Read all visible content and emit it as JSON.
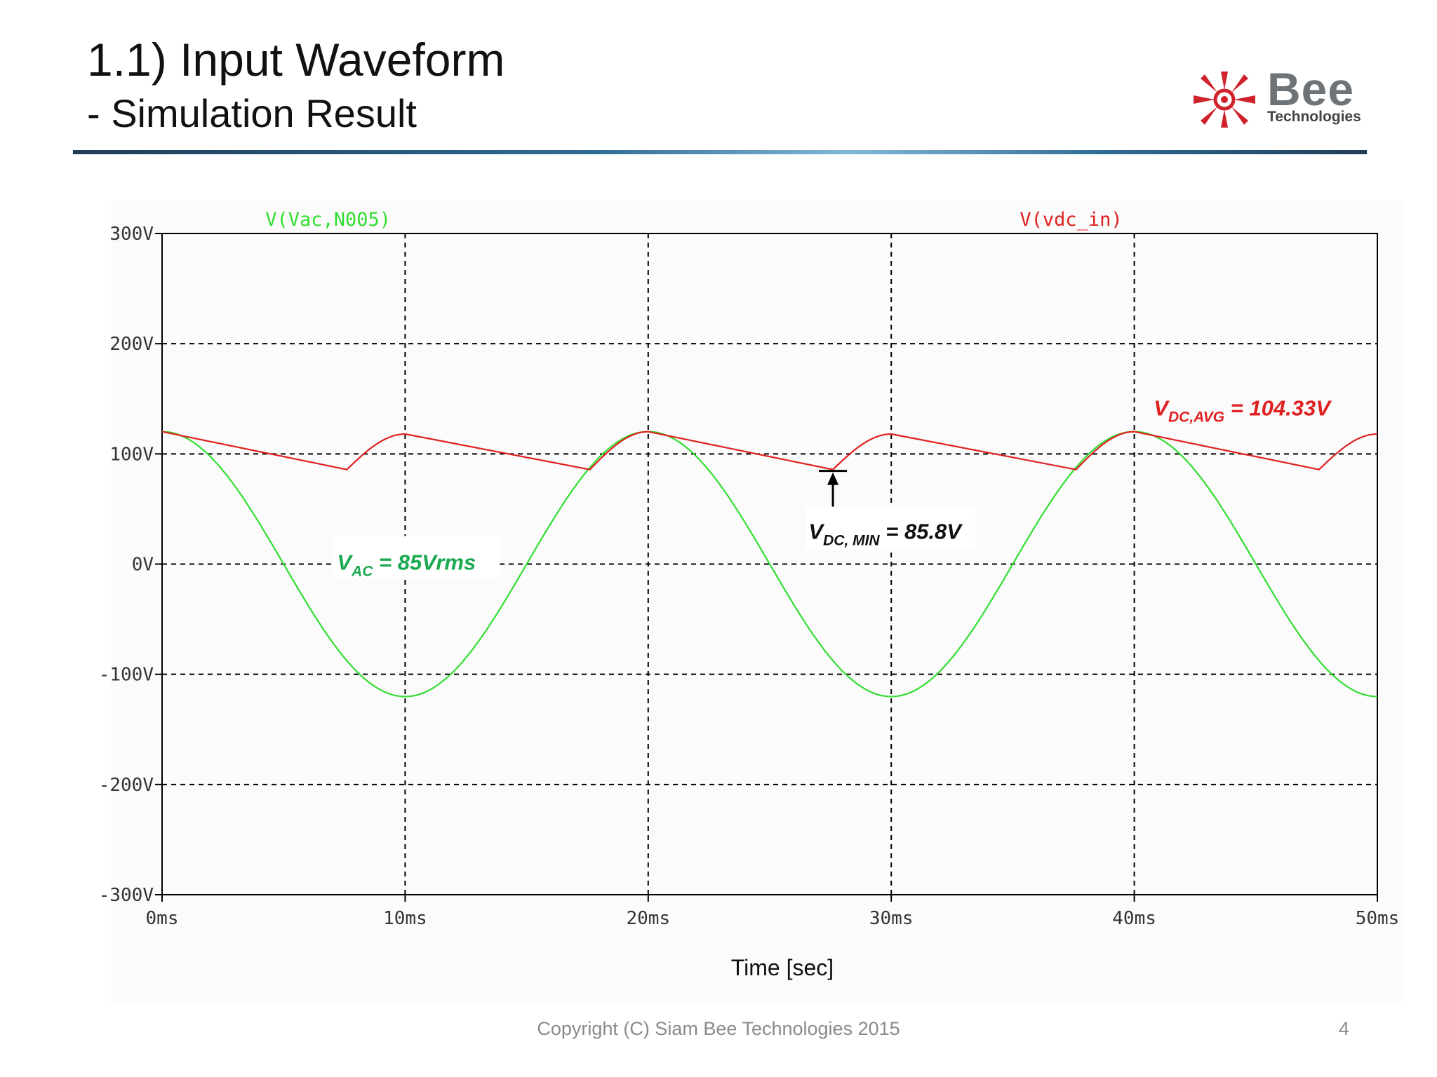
{
  "slide": {
    "title": "1.1) Input Waveform",
    "subtitle": "- Simulation Result",
    "footer": "Copyright (C) Siam Bee Technologies 2015",
    "page_number": "4"
  },
  "logo": {
    "word": "Bee",
    "sub": "Technologies",
    "icon": "bee-sunburst-logo-icon",
    "color": "#d0222a"
  },
  "chart_data": {
    "type": "line",
    "xlabel": "Time [sec]",
    "xlim": [
      0,
      50
    ],
    "ylim": [
      -300,
      300
    ],
    "x_ticks": [
      0,
      10,
      20,
      30,
      40,
      50
    ],
    "x_tick_labels": [
      "0ms",
      "10ms",
      "20ms",
      "30ms",
      "40ms",
      "50ms"
    ],
    "y_ticks": [
      300,
      200,
      100,
      0,
      -100,
      -200,
      -300
    ],
    "y_tick_labels": [
      "300V",
      "200V",
      "100V",
      "0V",
      "-100V",
      "-200V",
      "-300V"
    ],
    "grid": true,
    "series": [
      {
        "name": "V(Vac,N005)",
        "color": "#33dd33",
        "amplitude": 120.2,
        "frequency_hz": 50,
        "x": [
          0,
          2.5,
          5,
          7.5,
          10,
          12.5,
          15,
          17.5,
          20,
          22.5,
          25,
          27.5,
          30,
          32.5,
          35,
          37.5,
          40,
          42.5,
          45,
          47.5,
          50
        ],
        "values": [
          120.2,
          85,
          0,
          -85,
          -120.2,
          -85,
          0,
          85,
          120.2,
          85,
          0,
          -85,
          -120.2,
          -85,
          0,
          85,
          120.2,
          85,
          0,
          -85,
          -120.2
        ]
      },
      {
        "name": "V(vdc_in)",
        "color": "#e02020",
        "x": [
          0,
          7.6,
          10,
          17.6,
          20,
          27.6,
          30,
          37.6,
          40,
          47.6,
          50
        ],
        "values": [
          120.2,
          85.8,
          118,
          85.8,
          120.2,
          85.8,
          118,
          85.8,
          120.2,
          85.8,
          118
        ]
      }
    ],
    "annotations": [
      {
        "id": "vac",
        "main": "V",
        "sub": "AC",
        "rest": " = 85Vrms",
        "color": "#1aa850",
        "x": 7.2,
        "y": 0
      },
      {
        "id": "vdcmin",
        "main": "V",
        "sub": "DC, MIN",
        "rest": " = 85.8V",
        "color": "#111111",
        "x": 26.6,
        "y": 28
      },
      {
        "id": "vdcavg",
        "main": "V",
        "sub": "DC,AVG",
        "rest": " = 104.33V",
        "color": "#e02020",
        "x": 40.8,
        "y": 140
      }
    ],
    "marker": {
      "x": 27.6,
      "y": 85.8
    }
  }
}
